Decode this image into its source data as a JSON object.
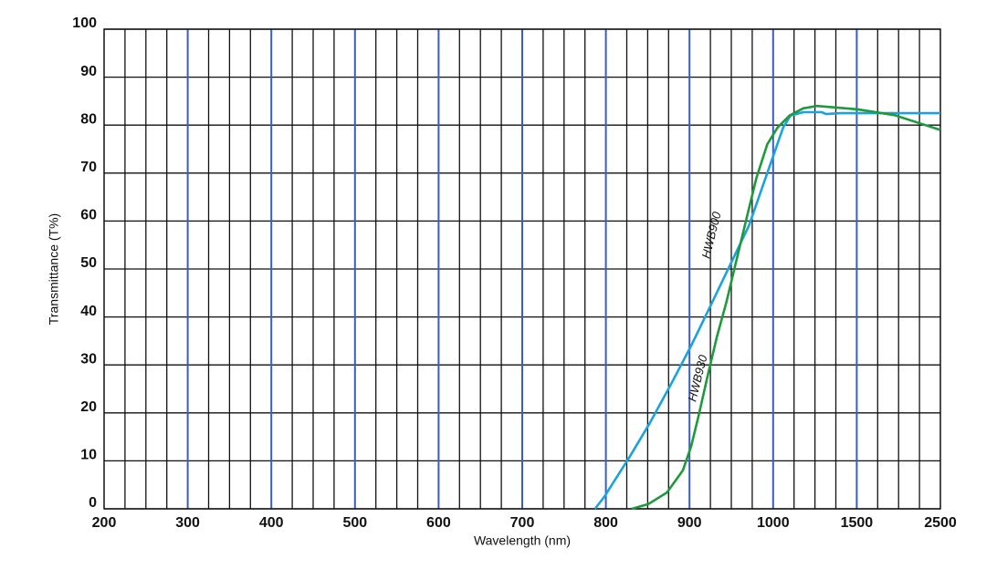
{
  "chart_data": {
    "type": "line",
    "x_label": "Wavelength (nm)",
    "y_label": "Transmittance (T%)",
    "xlim": [
      200,
      2500
    ],
    "xticks": [
      200,
      300,
      400,
      500,
      600,
      700,
      800,
      900,
      1000,
      1500,
      2500
    ],
    "ylim": [
      0,
      100
    ],
    "yticks": [
      0,
      10,
      20,
      30,
      40,
      50,
      60,
      70,
      80,
      90,
      100
    ],
    "grid": true,
    "major_grid_color": "#3b5cc4",
    "minor_grid_color": "#111111",
    "series": [
      {
        "name": "HWB900",
        "color": "#1aa3dc",
        "x": [
          787,
          798,
          829,
          853,
          878,
          902,
          927,
          949,
          971,
          987,
          1005,
          1060,
          1104,
          1180,
          1290,
          1317,
          1399,
          1500,
          2500
        ],
        "values": [
          0,
          2.5,
          11,
          18,
          26,
          34,
          43,
          51,
          59,
          67,
          74,
          79.5,
          82,
          82.7,
          82.7,
          82.3,
          82.5,
          82.5,
          82.5
        ]
      },
      {
        "name": "HWB930",
        "color": "#1e9a3c",
        "x": [
          831,
          851,
          873,
          892,
          902,
          911,
          922,
          933,
          944,
          955,
          966,
          980,
          993,
          1027,
          1098,
          1180,
          1262,
          1500,
          1948,
          2500
        ],
        "values": [
          0,
          1,
          3.4,
          8,
          13,
          19.5,
          28,
          36,
          43,
          51,
          59,
          69,
          76,
          79.5,
          82,
          83.5,
          84,
          83.3,
          82.1,
          79
        ]
      }
    ]
  }
}
